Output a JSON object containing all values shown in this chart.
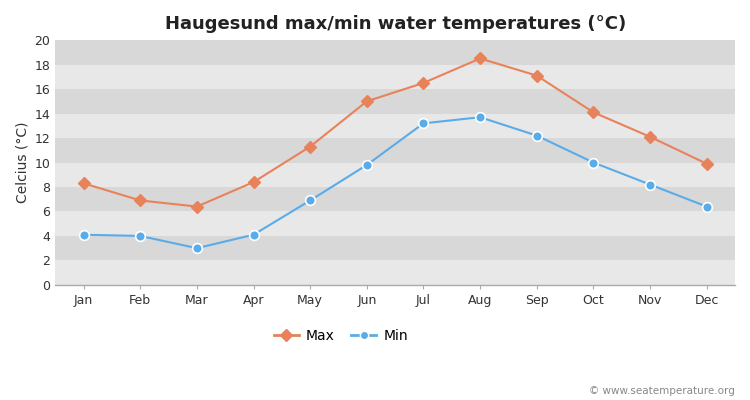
{
  "title": "Haugesund max/min water temperatures (°C)",
  "ylabel": "Celcius (°C)",
  "months": [
    "Jan",
    "Feb",
    "Mar",
    "Apr",
    "May",
    "Jun",
    "Jul",
    "Aug",
    "Sep",
    "Oct",
    "Nov",
    "Dec"
  ],
  "max_temps": [
    8.3,
    6.9,
    6.4,
    8.4,
    11.3,
    15.0,
    16.5,
    18.5,
    17.1,
    14.1,
    12.1,
    9.9
  ],
  "min_temps": [
    4.1,
    4.0,
    3.0,
    4.1,
    6.9,
    9.8,
    13.2,
    13.7,
    12.2,
    10.0,
    8.2,
    6.4
  ],
  "max_color": "#e8825a",
  "min_color": "#5aace8",
  "bg_color": "#ffffff",
  "band_colors": [
    "#e8e8e8",
    "#d8d8d8"
  ],
  "ylim": [
    0,
    20
  ],
  "yticks": [
    0,
    2,
    4,
    6,
    8,
    10,
    12,
    14,
    16,
    18,
    20
  ],
  "legend_labels": [
    "Max",
    "Min"
  ],
  "watermark": "© www.seatemperature.org",
  "title_fontsize": 13,
  "axis_label_fontsize": 10,
  "tick_fontsize": 9,
  "legend_fontsize": 10
}
